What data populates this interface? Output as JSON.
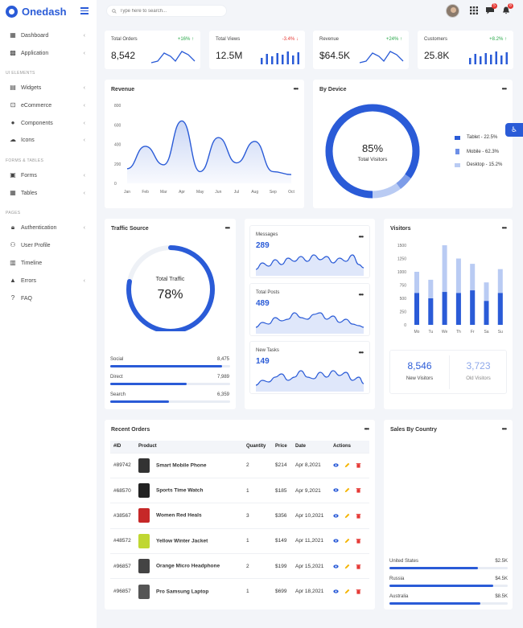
{
  "brand": {
    "name": "Onedash"
  },
  "search": {
    "placeholder": "Type here to search..."
  },
  "notifications": {
    "messages_count": "5",
    "alerts_count": "8"
  },
  "sidebar": {
    "sections": [
      "UI ELEMENTS",
      "FORMS & TABLES",
      "PAGES"
    ],
    "items": [
      {
        "label": "Dashboard",
        "icon": "grid-icon"
      },
      {
        "label": "Application",
        "icon": "apps-icon"
      },
      {
        "label": "Widgets",
        "icon": "widget-icon"
      },
      {
        "label": "eCommerce",
        "icon": "cart-icon"
      },
      {
        "label": "Components",
        "icon": "bulb-icon"
      },
      {
        "label": "Icons",
        "icon": "cloud-icon"
      },
      {
        "label": "Forms",
        "icon": "form-icon"
      },
      {
        "label": "Tables",
        "icon": "table-icon"
      },
      {
        "label": "Authentication",
        "icon": "lock-icon"
      },
      {
        "label": "User Profile",
        "icon": "users-icon"
      },
      {
        "label": "Timeline",
        "icon": "timeline-icon"
      },
      {
        "label": "Errors",
        "icon": "warning-icon"
      },
      {
        "label": "FAQ",
        "icon": "question-icon"
      }
    ]
  },
  "stats": [
    {
      "title": "Total Orders",
      "change": "+16%",
      "direction": "up",
      "value": "8,542",
      "chart": "line"
    },
    {
      "title": "Total Views",
      "change": "-3.4%",
      "direction": "down",
      "value": "12.5M",
      "chart": "bars"
    },
    {
      "title": "Revenue",
      "change": "+24%",
      "direction": "up",
      "value": "$64.5K",
      "chart": "line"
    },
    {
      "title": "Customers",
      "change": "+8.2%",
      "direction": "up",
      "value": "25.8K",
      "chart": "bars"
    }
  ],
  "colors": {
    "primary": "#2a5bd7",
    "light": "#b9cbf3",
    "up": "#2aa84a",
    "down": "#e53935"
  },
  "chart_data": [
    {
      "type": "area",
      "title": "Revenue",
      "categories": [
        "Jan",
        "Feb",
        "Mar",
        "Apr",
        "May",
        "Jun",
        "Jul",
        "Aug",
        "Sep",
        "Oct"
      ],
      "values": [
        150,
        380,
        190,
        640,
        120,
        470,
        210,
        430,
        120,
        90
      ],
      "ylim": [
        0,
        800
      ],
      "yticks": [
        "800",
        "600",
        "400",
        "200",
        "0"
      ]
    },
    {
      "type": "pie",
      "title": "By Device",
      "center_value": "85%",
      "center_label": "Total Visitors",
      "slices": [
        {
          "name": "Tablet",
          "label": "Tablet - 22.5%",
          "value": 22.5,
          "color": "#2a5bd7"
        },
        {
          "name": "Mobile",
          "label": "Mobile - 62.3%",
          "value": 62.3,
          "color": "#6d8fe6"
        },
        {
          "name": "Desktop",
          "label": "Desktop - 15.2%",
          "value": 15.2,
          "color": "#b9cbf3"
        }
      ]
    },
    {
      "type": "bar",
      "title": "Visitors",
      "categories": [
        "Mo",
        "Tu",
        "We",
        "Th",
        "Fr",
        "Sa",
        "Su"
      ],
      "series": [
        {
          "values": [
            600,
            500,
            620,
            600,
            650,
            450,
            600
          ]
        },
        {
          "values": [
            1000,
            850,
            1500,
            1250,
            1150,
            800,
            1050
          ]
        }
      ],
      "ylim": [
        0,
        1500
      ],
      "yticks": [
        "1500",
        "1250",
        "1000",
        "750",
        "500",
        "250",
        "0"
      ]
    }
  ],
  "traffic": {
    "title": "Traffic Source",
    "center_label": "Total Traffic",
    "center_value": "78%",
    "percent": 78,
    "sources": [
      {
        "label": "Social",
        "value": "8,475",
        "fill": 0.93
      },
      {
        "label": "Direct",
        "value": "7,989",
        "fill": 0.64
      },
      {
        "label": "Search",
        "value": "6,359",
        "fill": 0.49
      }
    ]
  },
  "mini_cards": [
    {
      "title": "Messages",
      "value": "289"
    },
    {
      "title": "Total Posts",
      "value": "489"
    },
    {
      "title": "New Tasks",
      "value": "149"
    }
  ],
  "visitors_summary": [
    {
      "value": "8,546",
      "label": "New Visitors",
      "color": "#2a5bd7"
    },
    {
      "value": "3,723",
      "label": "Old Visitors",
      "color": "#8fa9ea"
    }
  ],
  "orders": {
    "title": "Recent Orders",
    "headers": [
      "#ID",
      "Product",
      "Quantity",
      "Price",
      "Date",
      "Actions"
    ],
    "rows": [
      {
        "id": "#89742",
        "product": "Smart Mobile Phone",
        "qty": "2",
        "price": "$214",
        "date": "Apr 8,2021",
        "img": "#333"
      },
      {
        "id": "#68570",
        "product": "Sports Time Watch",
        "qty": "1",
        "price": "$185",
        "date": "Apr 9,2021",
        "img": "#222"
      },
      {
        "id": "#38567",
        "product": "Women Red Heals",
        "qty": "3",
        "price": "$356",
        "date": "Apr 10,2021",
        "img": "#c62828"
      },
      {
        "id": "#48572",
        "product": "Yellow Winter Jacket",
        "qty": "1",
        "price": "$149",
        "date": "Apr 11,2021",
        "img": "#c0d732"
      },
      {
        "id": "#96857",
        "product": "Orange Micro Headphone",
        "qty": "2",
        "price": "$199",
        "date": "Apr 15,2021",
        "img": "#444"
      },
      {
        "id": "#96857",
        "product": "Pro Samsung Laptop",
        "qty": "1",
        "price": "$699",
        "date": "Apr 18,2021",
        "img": "#555"
      }
    ]
  },
  "countries": {
    "title": "Sales By Country",
    "items": [
      {
        "name": "United States",
        "value": "$2.5K",
        "fill": 0.75
      },
      {
        "name": "Russia",
        "value": "$4.5K",
        "fill": 0.88
      },
      {
        "name": "Australia",
        "value": "$8.5K",
        "fill": 0.77
      }
    ]
  }
}
